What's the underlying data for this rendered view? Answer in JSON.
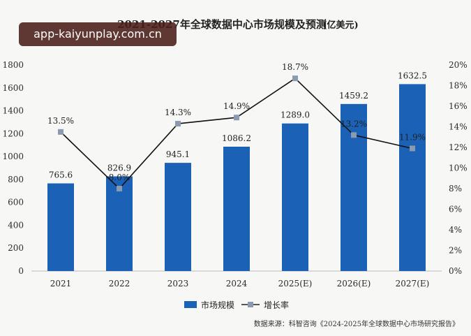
{
  "chart_data": {
    "type": "bar",
    "title": "2021-2027年全球数据中心市场规模及预测",
    "unit": "(亿美元)",
    "categories": [
      "2021",
      "2022",
      "2023",
      "2024",
      "2025(E)",
      "2026(E)",
      "2027(E)"
    ],
    "series": [
      {
        "name": "市场规模",
        "type": "bar",
        "axis": "left",
        "color": "#1b62b6",
        "values": [
          765.6,
          826.9,
          945.1,
          1086.2,
          1289.0,
          1459.2,
          1632.5
        ],
        "labels": [
          "765.6",
          "826.9",
          "945.1",
          "1086.2",
          "1289.0",
          "1459.2",
          "1632.5"
        ]
      },
      {
        "name": "增长率",
        "type": "line",
        "axis": "right",
        "color": "#111111",
        "marker_color": "#8a9bb0",
        "values": [
          13.5,
          8.0,
          14.3,
          14.9,
          18.7,
          13.2,
          11.9
        ],
        "labels": [
          "13.5%",
          "8.0%",
          "14.3%",
          "14.9%",
          "18.7%",
          "13.2%",
          "11.9%"
        ]
      }
    ],
    "y_left": {
      "ylim": [
        0,
        1800
      ],
      "ticks": [
        "0",
        "200",
        "400",
        "600",
        "800",
        "1000",
        "1200",
        "1400",
        "1600",
        "1800"
      ]
    },
    "y_right": {
      "ylim": [
        0,
        20
      ],
      "ticks": [
        "0%",
        "2%",
        "4%",
        "6%",
        "8%",
        "10%",
        "12%",
        "14%",
        "16%",
        "18%",
        "20%"
      ]
    },
    "grid": false,
    "legend": "bottom-center",
    "source": "数据来源：科智咨询《2024-2025年全球数据中心市场研究报告》"
  },
  "watermark": "app-kaiyunplay.com.cn"
}
